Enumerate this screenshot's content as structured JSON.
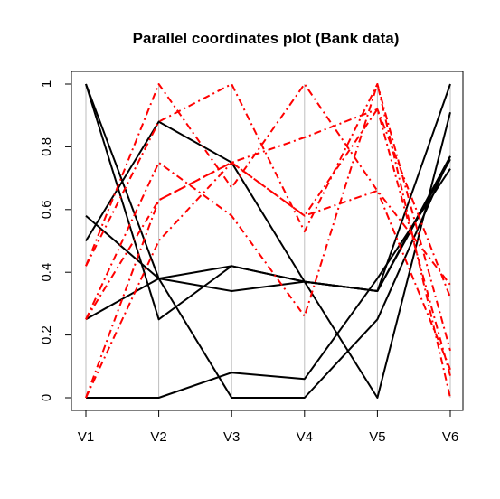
{
  "chart_data": {
    "type": "line",
    "title": "Parallel coordinates plot (Bank data)",
    "categories": [
      "V1",
      "V2",
      "V3",
      "V4",
      "V5",
      "V6"
    ],
    "ylim": [
      0,
      1
    ],
    "y_ticks": [
      "0",
      "0.2",
      "0.4",
      "0.6",
      "0.8",
      "1"
    ],
    "y_tick_values": [
      0,
      0.2,
      0.4,
      0.6,
      0.8,
      1
    ],
    "grid": "vertical lines at each variable",
    "colors": {
      "group1": "#000000",
      "group2": "#ff0000",
      "grid": "#bebebe"
    },
    "series": [
      {
        "group": "group1",
        "style": "solid",
        "values": [
          1.0,
          0.38,
          0.34,
          0.37,
          0.34,
          1.0
        ]
      },
      {
        "group": "group1",
        "style": "solid",
        "values": [
          0.5,
          0.88,
          0.75,
          0.37,
          0.0,
          0.91
        ]
      },
      {
        "group": "group1",
        "style": "solid",
        "values": [
          0.58,
          0.38,
          0.0,
          0.0,
          0.25,
          0.77
        ]
      },
      {
        "group": "group1",
        "style": "solid",
        "values": [
          0.25,
          0.38,
          0.42,
          0.37,
          0.34,
          0.77
        ]
      },
      {
        "group": "group1",
        "style": "solid",
        "values": [
          0.0,
          0.0,
          0.08,
          0.06,
          0.38,
          0.73
        ]
      },
      {
        "group": "group1",
        "style": "solid",
        "values": [
          1.0,
          0.25,
          0.42,
          0.37,
          0.34,
          0.76
        ]
      },
      {
        "group": "group2",
        "style": "dashdot",
        "values": [
          0.42,
          1.0,
          0.67,
          1.0,
          0.66,
          0.09
        ]
      },
      {
        "group": "group2",
        "style": "dashdot",
        "values": [
          0.25,
          0.75,
          0.58,
          0.26,
          1.0,
          0.0
        ]
      },
      {
        "group": "group2",
        "style": "dashdot",
        "values": [
          0.0,
          0.5,
          0.75,
          0.58,
          0.66,
          0.36
        ]
      },
      {
        "group": "group2",
        "style": "dashdot",
        "values": [
          0.25,
          0.63,
          0.75,
          0.83,
          0.92,
          0.32
        ]
      },
      {
        "group": "group2",
        "style": "dashdot",
        "values": [
          0.42,
          0.88,
          1.0,
          0.53,
          1.0,
          0.15
        ]
      },
      {
        "group": "group2",
        "style": "dashdot",
        "values": [
          0.0,
          0.63,
          0.75,
          0.58,
          0.92,
          0.07
        ]
      }
    ]
  }
}
